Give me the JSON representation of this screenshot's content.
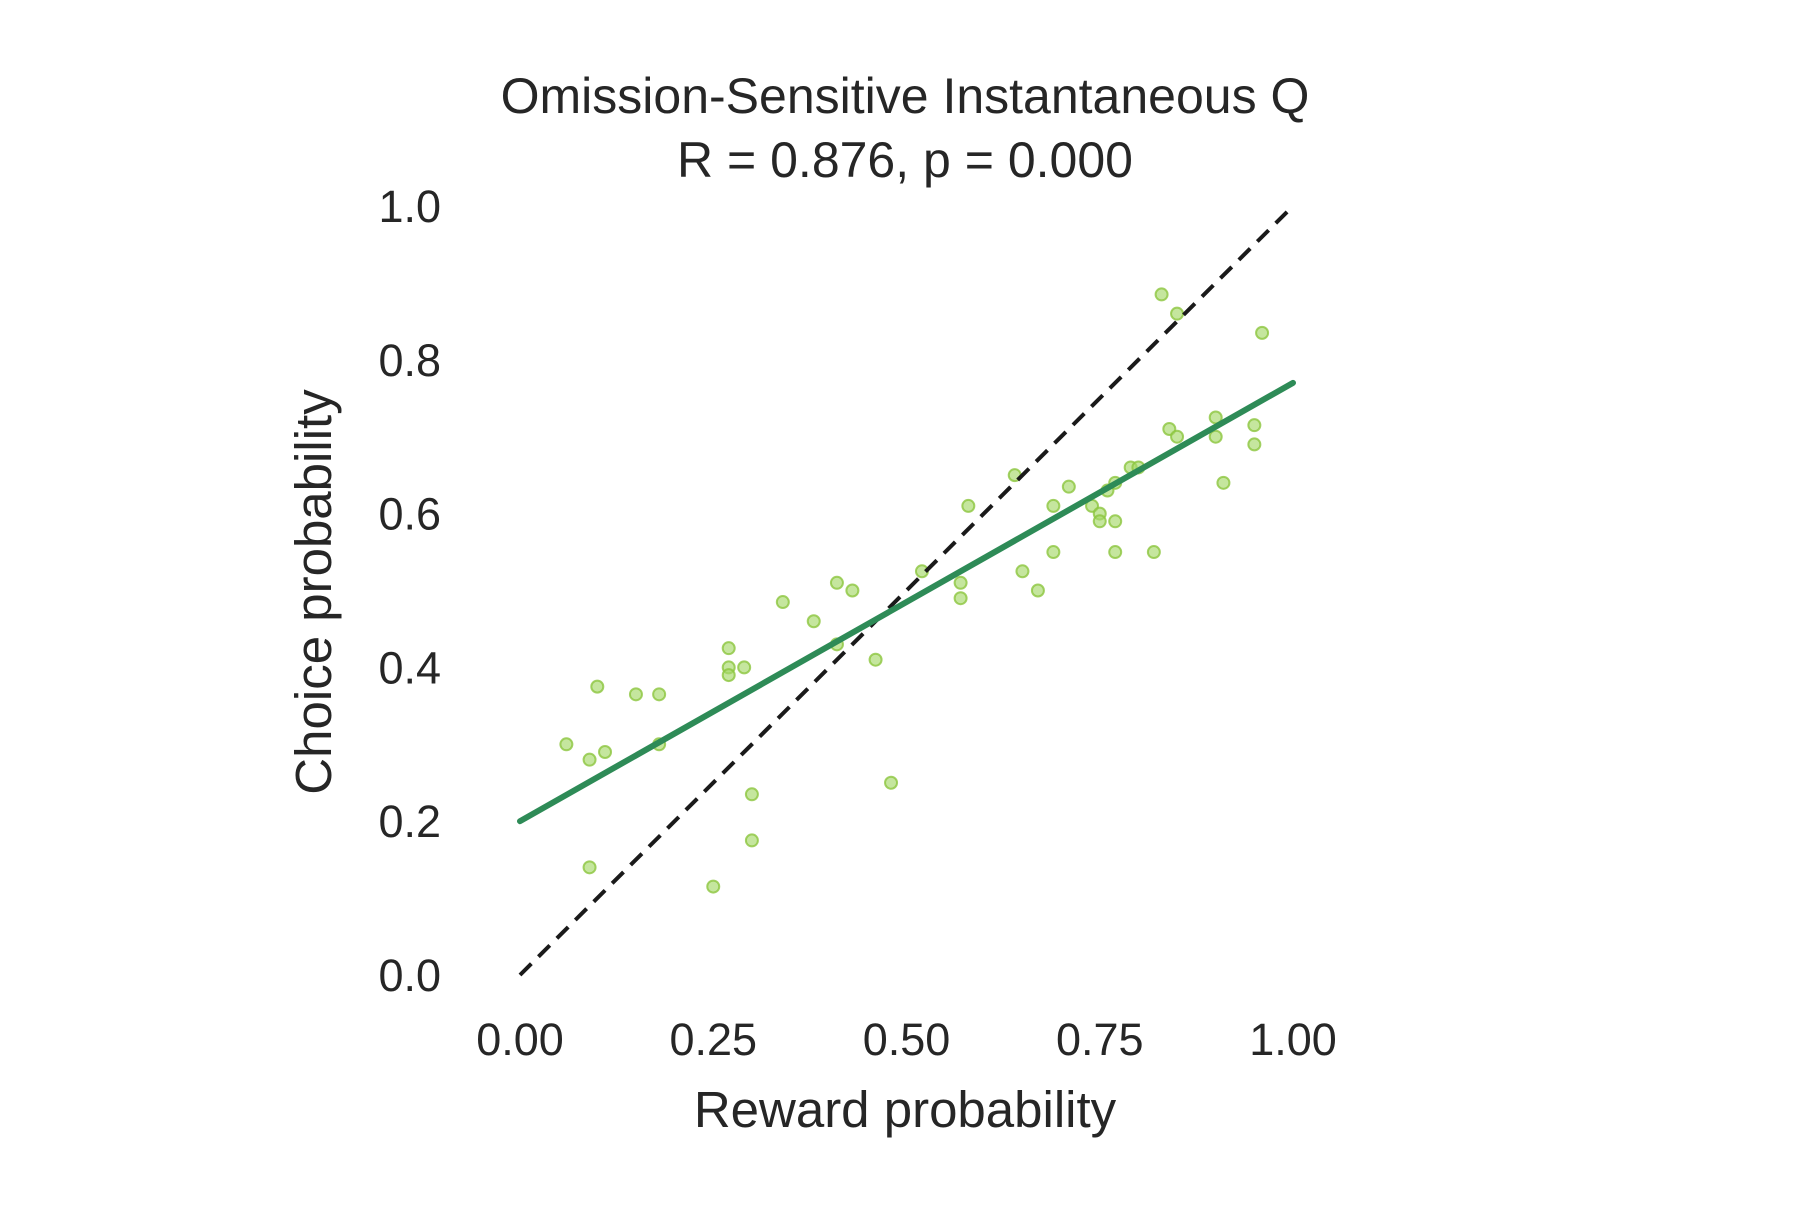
{
  "chart_data": {
    "type": "scatter",
    "title": "Omission-Sensitive Instantaneous Q",
    "subtitle": "R = 0.876, p = 0.000",
    "xlabel": "Reward probability",
    "ylabel": "Choice probability",
    "xlim": [
      0,
      1
    ],
    "ylim": [
      0,
      1
    ],
    "xticks": [
      "0.00",
      "0.25",
      "0.50",
      "0.75",
      "1.00"
    ],
    "yticks": [
      "0.0",
      "0.2",
      "0.4",
      "0.6",
      "0.8",
      "1.0"
    ],
    "grid": false,
    "colors": {
      "points": "#a6d96a",
      "points_edge": "#8cc63f",
      "fit_line": "#2e8b57",
      "identity_line": "#1a1a1a",
      "text": "#262626"
    },
    "identity_line": {
      "x": [
        0,
        1
      ],
      "y": [
        0,
        1
      ],
      "style": "dashed"
    },
    "fit_line": {
      "x": [
        0,
        1
      ],
      "y": [
        0.2,
        0.77
      ]
    },
    "points": [
      {
        "x": 0.06,
        "y": 0.3
      },
      {
        "x": 0.09,
        "y": 0.28
      },
      {
        "x": 0.09,
        "y": 0.14
      },
      {
        "x": 0.1,
        "y": 0.375
      },
      {
        "x": 0.11,
        "y": 0.29
      },
      {
        "x": 0.15,
        "y": 0.365
      },
      {
        "x": 0.18,
        "y": 0.365
      },
      {
        "x": 0.18,
        "y": 0.3
      },
      {
        "x": 0.25,
        "y": 0.115
      },
      {
        "x": 0.27,
        "y": 0.425
      },
      {
        "x": 0.27,
        "y": 0.4
      },
      {
        "x": 0.27,
        "y": 0.39
      },
      {
        "x": 0.29,
        "y": 0.4
      },
      {
        "x": 0.3,
        "y": 0.175
      },
      {
        "x": 0.3,
        "y": 0.235
      },
      {
        "x": 0.34,
        "y": 0.485
      },
      {
        "x": 0.38,
        "y": 0.46
      },
      {
        "x": 0.41,
        "y": 0.51
      },
      {
        "x": 0.41,
        "y": 0.43
      },
      {
        "x": 0.43,
        "y": 0.5
      },
      {
        "x": 0.46,
        "y": 0.41
      },
      {
        "x": 0.48,
        "y": 0.25
      },
      {
        "x": 0.52,
        "y": 0.525
      },
      {
        "x": 0.57,
        "y": 0.51
      },
      {
        "x": 0.57,
        "y": 0.49
      },
      {
        "x": 0.58,
        "y": 0.61
      },
      {
        "x": 0.64,
        "y": 0.65
      },
      {
        "x": 0.65,
        "y": 0.525
      },
      {
        "x": 0.67,
        "y": 0.5
      },
      {
        "x": 0.69,
        "y": 0.61
      },
      {
        "x": 0.69,
        "y": 0.55
      },
      {
        "x": 0.71,
        "y": 0.635
      },
      {
        "x": 0.74,
        "y": 0.61
      },
      {
        "x": 0.75,
        "y": 0.6
      },
      {
        "x": 0.75,
        "y": 0.59
      },
      {
        "x": 0.76,
        "y": 0.63
      },
      {
        "x": 0.77,
        "y": 0.64
      },
      {
        "x": 0.77,
        "y": 0.59
      },
      {
        "x": 0.77,
        "y": 0.55
      },
      {
        "x": 0.79,
        "y": 0.66
      },
      {
        "x": 0.8,
        "y": 0.66
      },
      {
        "x": 0.82,
        "y": 0.55
      },
      {
        "x": 0.83,
        "y": 0.885
      },
      {
        "x": 0.84,
        "y": 0.71
      },
      {
        "x": 0.85,
        "y": 0.86
      },
      {
        "x": 0.85,
        "y": 0.7
      },
      {
        "x": 0.9,
        "y": 0.7
      },
      {
        "x": 0.9,
        "y": 0.725
      },
      {
        "x": 0.91,
        "y": 0.64
      },
      {
        "x": 0.95,
        "y": 0.69
      },
      {
        "x": 0.95,
        "y": 0.715
      },
      {
        "x": 0.96,
        "y": 0.835
      }
    ]
  }
}
